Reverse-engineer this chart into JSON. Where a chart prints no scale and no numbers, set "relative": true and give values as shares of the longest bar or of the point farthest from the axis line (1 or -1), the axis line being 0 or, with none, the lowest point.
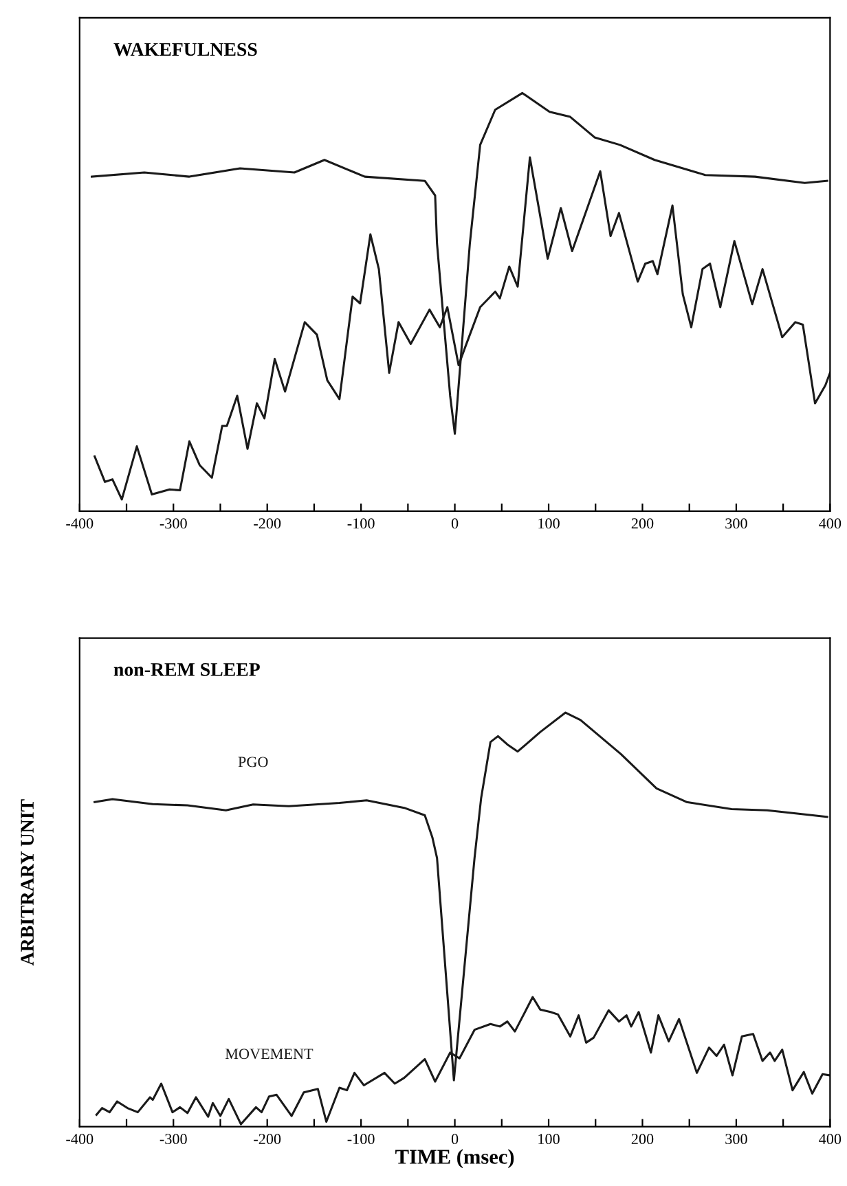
{
  "chart_data": [
    {
      "type": "line",
      "title": "WAKEFULNESS",
      "relative": true,
      "xlim": [
        -400,
        400
      ],
      "xticks": [
        -400,
        {
          "value": -350,
          "label": null
        },
        -300,
        {
          "value": -250,
          "label": null
        },
        -200,
        {
          "value": -150,
          "label": null
        },
        -100,
        {
          "value": -50,
          "label": null
        },
        0,
        {
          "value": 50,
          "label": null
        },
        100,
        {
          "value": 150,
          "label": null
        },
        200,
        {
          "value": 250,
          "label": null
        },
        300,
        {
          "value": 350,
          "label": null
        },
        400
      ],
      "series": [
        {
          "color": "#1a1a1a",
          "x": [
            -387,
            -331,
            -283,
            -229,
            -171,
            -139,
            -96,
            -32,
            -21,
            -19,
            -5,
            0,
            16,
            27,
            43,
            72,
            101,
            123,
            149,
            176,
            213,
            267,
            320,
            373,
            397
          ],
          "values": [
            0.8,
            0.81,
            0.8,
            0.82,
            0.81,
            0.84,
            0.8,
            0.79,
            0.755,
            0.64,
            0.276,
            0.185,
            0.64,
            0.876,
            0.96,
            1.0,
            0.955,
            0.943,
            0.894,
            0.876,
            0.84,
            0.804,
            0.8,
            0.785,
            0.79
          ]
        },
        {
          "color": "#1a1a1a",
          "x": [
            -384,
            -373,
            -365,
            -355,
            -339,
            -323,
            -304,
            -293,
            -283,
            -272,
            -259,
            -248,
            -243,
            -232,
            -221,
            -211,
            -203,
            -192,
            -181,
            -160,
            -147,
            -136,
            -123,
            -109,
            -101,
            -90,
            -81,
            -70,
            -60,
            -47,
            -27,
            -16,
            -8,
            4,
            11,
            27,
            43,
            48,
            58,
            67,
            80,
            99,
            113,
            125,
            155,
            166,
            175,
            195,
            203,
            211,
            216,
            232,
            243,
            252,
            264,
            272,
            283,
            298,
            317,
            328,
            349,
            363,
            371,
            384,
            395,
            400
          ],
          "values": [
            0.131,
            0.07,
            0.076,
            0.028,
            0.155,
            0.04,
            0.052,
            0.05,
            0.167,
            0.11,
            0.08,
            0.204,
            0.204,
            0.276,
            0.149,
            0.258,
            0.222,
            0.364,
            0.286,
            0.452,
            0.422,
            0.313,
            0.268,
            0.513,
            0.497,
            0.662,
            0.579,
            0.331,
            0.452,
            0.4,
            0.482,
            0.44,
            0.488,
            0.349,
            0.392,
            0.488,
            0.525,
            0.509,
            0.585,
            0.537,
            0.846,
            0.604,
            0.725,
            0.622,
            0.813,
            0.658,
            0.713,
            0.549,
            0.592,
            0.598,
            0.567,
            0.731,
            0.519,
            0.44,
            0.579,
            0.592,
            0.488,
            0.646,
            0.495,
            0.579,
            0.416,
            0.452,
            0.446,
            0.258,
            0.301,
            0.331
          ]
        }
      ]
    },
    {
      "type": "line",
      "title": "non-REM SLEEP",
      "relative": true,
      "xlabel": "TIME (msec)",
      "ylabel": "ARBITRARY UNIT",
      "xlim": [
        -400,
        400
      ],
      "xticks": [
        -400,
        {
          "value": -350,
          "label": null
        },
        -300,
        {
          "value": -250,
          "label": null
        },
        -200,
        {
          "value": -150,
          "label": null
        },
        -100,
        {
          "value": -50,
          "label": null
        },
        0,
        {
          "value": 50,
          "label": null
        },
        100,
        {
          "value": 150,
          "label": null
        },
        200,
        {
          "value": 250,
          "label": null
        },
        300,
        {
          "value": 350,
          "label": null
        },
        400
      ],
      "series": [
        {
          "name": "PGO",
          "color": "#1a1a1a",
          "x": [
            -384,
            -365,
            -322,
            -285,
            -244,
            -215,
            -177,
            -123,
            -94,
            -54,
            -32,
            -24,
            -19,
            -1,
            21,
            28,
            38,
            46,
            56,
            67,
            91,
            118,
            134,
            177,
            215,
            247,
            295,
            333,
            365,
            397
          ],
          "values": [
            0.784,
            0.791,
            0.779,
            0.776,
            0.764,
            0.778,
            0.774,
            0.782,
            0.788,
            0.77,
            0.752,
            0.699,
            0.649,
            0.112,
            0.649,
            0.793,
            0.929,
            0.943,
            0.923,
            0.906,
            0.953,
            1.0,
            0.982,
            0.9,
            0.817,
            0.784,
            0.767,
            0.764,
            0.756,
            0.748
          ]
        },
        {
          "name": "MOVEMENT",
          "color": "#1a1a1a",
          "x": [
            -382,
            -376,
            -368,
            -360,
            -349,
            -338,
            -325,
            -322,
            -313,
            -301,
            -293,
            -285,
            -276,
            -263,
            -258,
            -250,
            -241,
            -228,
            -212,
            -206,
            -198,
            -190,
            -174,
            -161,
            -146,
            -137,
            -123,
            -115,
            -107,
            -97,
            -75,
            -64,
            -54,
            -32,
            -21,
            -5,
            5,
            21,
            38,
            48,
            56,
            64,
            83,
            91,
            102,
            110,
            123,
            132,
            140,
            148,
            164,
            175,
            183,
            188,
            196,
            209,
            217,
            228,
            239,
            258,
            271,
            279,
            287,
            296,
            306,
            318,
            328,
            336,
            341,
            349,
            360,
            372,
            381,
            392,
            400
          ],
          "values": [
            0.029,
            0.045,
            0.035,
            0.061,
            0.045,
            0.035,
            0.071,
            0.065,
            0.104,
            0.035,
            0.047,
            0.033,
            0.071,
            0.024,
            0.057,
            0.026,
            0.067,
            0.006,
            0.047,
            0.035,
            0.073,
            0.077,
            0.026,
            0.083,
            0.091,
            0.012,
            0.094,
            0.088,
            0.13,
            0.1,
            0.13,
            0.104,
            0.118,
            0.163,
            0.109,
            0.179,
            0.165,
            0.234,
            0.248,
            0.242,
            0.254,
            0.23,
            0.313,
            0.283,
            0.277,
            0.271,
            0.218,
            0.269,
            0.203,
            0.215,
            0.281,
            0.254,
            0.269,
            0.242,
            0.277,
            0.179,
            0.269,
            0.206,
            0.26,
            0.13,
            0.191,
            0.171,
            0.198,
            0.124,
            0.218,
            0.224,
            0.159,
            0.179,
            0.159,
            0.186,
            0.088,
            0.132,
            0.08,
            0.127,
            0.124
          ]
        }
      ]
    }
  ]
}
